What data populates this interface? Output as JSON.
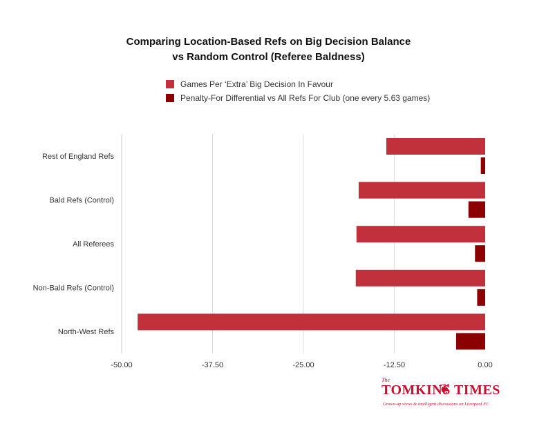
{
  "chart_data": {
    "type": "bar",
    "orientation": "horizontal",
    "title": "Comparing Location-Based Refs on Big Decision Balance vs Random Control (Referee Baldness)",
    "title_lines": [
      "Comparing Location-Based Refs on Big Decision Balance",
      "vs Random Control (Referee Baldness)"
    ],
    "categories": [
      "Rest of England Refs",
      "Bald Refs (Control)",
      "All Referees",
      "Non-Bald Refs (Control)",
      "North-West Refs"
    ],
    "series": [
      {
        "name": "Games Per ‘Extra’ Big Decision In Favour",
        "color": "#c1313b",
        "values": [
          -13.6,
          -17.4,
          -17.7,
          -17.8,
          -47.8
        ]
      },
      {
        "name": "Penalty-For Differential vs All Refs For Club (one every 5.63 games)",
        "color": "#8b0000",
        "values": [
          -0.6,
          -2.3,
          -1.4,
          -1.1,
          -4.0
        ]
      }
    ],
    "x_ticks": [
      -50,
      -37.5,
      -25,
      -12.5,
      0
    ],
    "x_tick_labels": [
      "-50.00",
      "-37.50",
      "-25.00",
      "-12.50",
      "0.00"
    ],
    "xlim": [
      -50,
      0
    ],
    "grid": "vertical",
    "legend_position": "top"
  },
  "logo": {
    "the": "The",
    "name": "TOMKINS TIMES",
    "tagline": "Grown-up views & intelligent discussions on Liverpool FC"
  }
}
